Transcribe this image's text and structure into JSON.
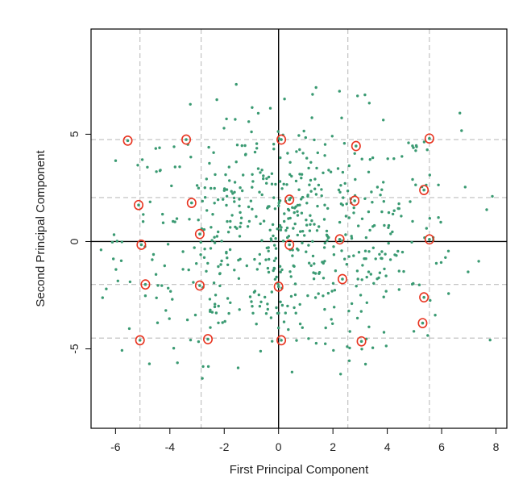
{
  "chart_data": {
    "type": "scatter",
    "title": "",
    "xlabel": "First Principal Component",
    "ylabel": "Second Principal Component",
    "xlim": [
      -6.9,
      8.4
    ],
    "ylim": [
      -8.7,
      9.9
    ],
    "xticks": [
      -6,
      -4,
      -2,
      0,
      2,
      4,
      6,
      8
    ],
    "yticks": [
      -5,
      0,
      5
    ],
    "grid": false,
    "legend": "none",
    "colors": {
      "points": "#3a9a72",
      "circles": "#e8331f",
      "guides": "#bdbdbd",
      "axes_lines": "#000000",
      "frame": "#000000"
    },
    "reference_lines": {
      "vertical": [
        0
      ],
      "horizontal": [
        0
      ]
    },
    "guide_lines": {
      "vertical": [
        -5.1,
        -2.85,
        2.55,
        5.55
      ],
      "horizontal": [
        4.75,
        2.05,
        -2.0,
        -4.5
      ]
    },
    "circled_points": [
      {
        "x": -5.55,
        "y": 4.7
      },
      {
        "x": -3.4,
        "y": 4.75
      },
      {
        "x": 0.1,
        "y": 4.75
      },
      {
        "x": 2.85,
        "y": 4.45
      },
      {
        "x": 5.55,
        "y": 4.8
      },
      {
        "x": -5.15,
        "y": 1.7
      },
      {
        "x": -3.2,
        "y": 1.8
      },
      {
        "x": 0.4,
        "y": 1.95
      },
      {
        "x": 2.8,
        "y": 1.9
      },
      {
        "x": 5.35,
        "y": 2.4
      },
      {
        "x": -2.9,
        "y": 0.35
      },
      {
        "x": -5.05,
        "y": -0.15
      },
      {
        "x": 0.4,
        "y": -0.15
      },
      {
        "x": 2.25,
        "y": 0.1
      },
      {
        "x": 5.55,
        "y": 0.1
      },
      {
        "x": -4.9,
        "y": -2.0
      },
      {
        "x": -2.9,
        "y": -2.05
      },
      {
        "x": 0.0,
        "y": -2.1
      },
      {
        "x": 2.35,
        "y": -1.75
      },
      {
        "x": 5.35,
        "y": -2.6
      },
      {
        "x": 5.3,
        "y": -3.8
      },
      {
        "x": -5.1,
        "y": -4.6
      },
      {
        "x": -2.6,
        "y": -4.55
      },
      {
        "x": 0.1,
        "y": -4.6
      },
      {
        "x": 3.05,
        "y": -4.65
      }
    ],
    "scatter_points": {
      "n": 620,
      "x_range": [
        -6.7,
        8.0
      ],
      "y_range": [
        -6.4,
        7.4
      ]
    }
  }
}
